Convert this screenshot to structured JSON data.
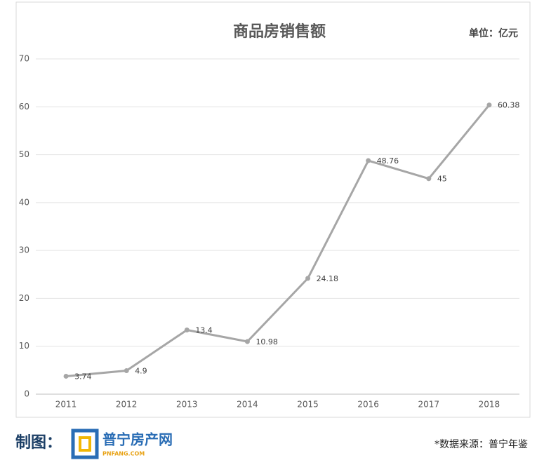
{
  "chart_data": {
    "type": "line",
    "title": "商品房销售额",
    "unit_label": "单位：亿元",
    "categories": [
      "2011",
      "2012",
      "2013",
      "2014",
      "2015",
      "2016",
      "2017",
      "2018"
    ],
    "values": [
      3.74,
      4.9,
      13.4,
      10.98,
      24.18,
      48.76,
      45,
      60.38
    ],
    "color": "#a6a6a6",
    "ylim": [
      0,
      70
    ],
    "yticks": [
      0,
      10,
      20,
      30,
      40,
      50,
      60,
      70
    ],
    "grid": true
  },
  "footer": {
    "made_by": "制图：",
    "logo_name": "普宁房产网",
    "logo_site": "PNFANG.COM",
    "source": "*数据来源：普宁年鉴"
  }
}
